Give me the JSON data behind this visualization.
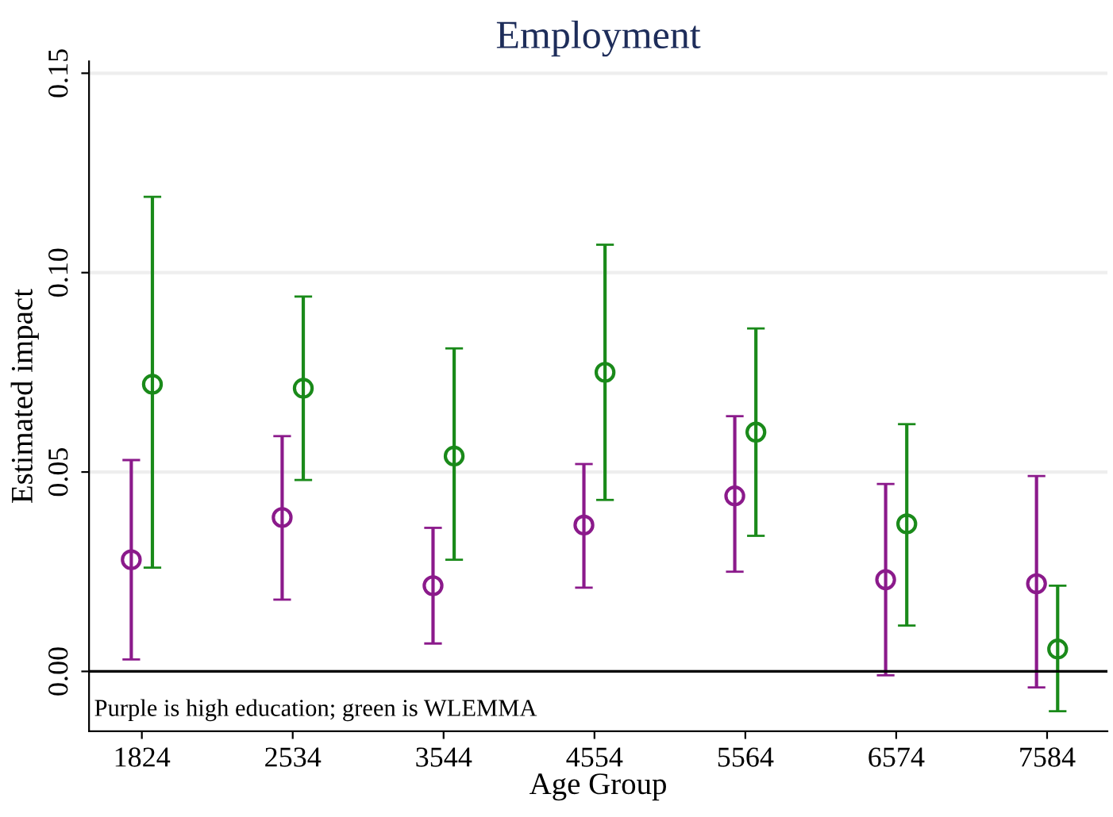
{
  "chart_data": {
    "type": "scatter",
    "title": "Employment",
    "xlabel": "Age Group",
    "ylabel": "Estimated impact",
    "categories": [
      "1824",
      "2534",
      "3544",
      "4554",
      "5564",
      "6574",
      "7584"
    ],
    "series": [
      {
        "color": "#8b1a8b",
        "values": [
          0.028,
          0.0386,
          0.0215,
          0.0367,
          0.044,
          0.023,
          0.022
        ],
        "errors": [
          [
            0.003,
            0.053
          ],
          [
            0.018,
            0.059
          ],
          [
            0.007,
            0.036
          ],
          [
            0.021,
            0.052
          ],
          [
            0.025,
            0.064
          ],
          [
            -0.001,
            0.047
          ],
          [
            -0.004,
            0.049
          ]
        ]
      },
      {
        "color": "#1a8a1a",
        "values": [
          0.072,
          0.071,
          0.054,
          0.075,
          0.06,
          0.037,
          0.0056
        ],
        "errors": [
          [
            0.026,
            0.119
          ],
          [
            0.048,
            0.094
          ],
          [
            0.028,
            0.081
          ],
          [
            0.043,
            0.107
          ],
          [
            0.034,
            0.086
          ],
          [
            0.0115,
            0.062
          ],
          [
            -0.01,
            0.0215
          ]
        ]
      }
    ],
    "ylim": [
      -0.015,
      0.153
    ],
    "yticks": [
      {
        "value": 0,
        "label": "0.00"
      },
      {
        "value": 0.05,
        "label": "0.05"
      },
      {
        "value": 0.1,
        "label": "0.10"
      },
      {
        "value": 0.15,
        "label": "0.15"
      }
    ],
    "ref_lines": [
      {
        "axis": "y",
        "value": 0,
        "color": "#000000"
      }
    ],
    "grid": "y",
    "marker": "circle",
    "annotations": [
      "Purple is high education; green is WLEMMA"
    ]
  }
}
